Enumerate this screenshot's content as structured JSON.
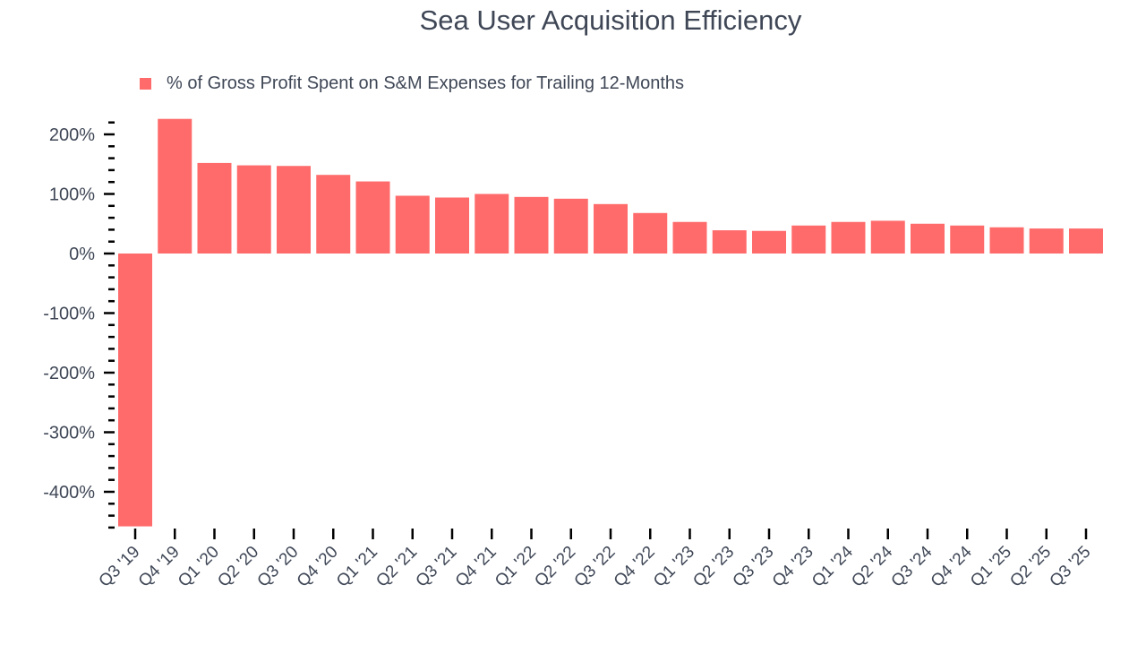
{
  "chart_data": {
    "type": "bar",
    "title": "Sea User Acquisition Efficiency",
    "legend": {
      "label": "% of Gross Profit Spent on S&M Expenses for Trailing 12-Months",
      "placement": "top-left"
    },
    "xlabel": "",
    "ylabel": "",
    "ylim": [
      -465,
      230
    ],
    "yticks": [
      200,
      100,
      0,
      -100,
      -200,
      -300,
      -400
    ],
    "ytick_labels": [
      "200%",
      "100%",
      "0%",
      "-100%",
      "-200%",
      "-300%",
      "-400%"
    ],
    "grid": false,
    "color": "#ff6b6b",
    "categories": [
      "Q3 '19",
      "Q4 '19",
      "Q1 '20",
      "Q2 '20",
      "Q3 '20",
      "Q4 '20",
      "Q1 '21",
      "Q2 '21",
      "Q3 '21",
      "Q4 '21",
      "Q1 '22",
      "Q2 '22",
      "Q3 '22",
      "Q4 '22",
      "Q1 '23",
      "Q2 '23",
      "Q3 '23",
      "Q4 '23",
      "Q1 '24",
      "Q2 '24",
      "Q3 '24",
      "Q4 '24",
      "Q1 '25",
      "Q2 '25",
      "Q3 '25"
    ],
    "values": [
      -458,
      226,
      152,
      148,
      147,
      132,
      121,
      97,
      94,
      100,
      95,
      92,
      83,
      68,
      53,
      39,
      38,
      47,
      53,
      55,
      50,
      47,
      44,
      42,
      42
    ]
  }
}
